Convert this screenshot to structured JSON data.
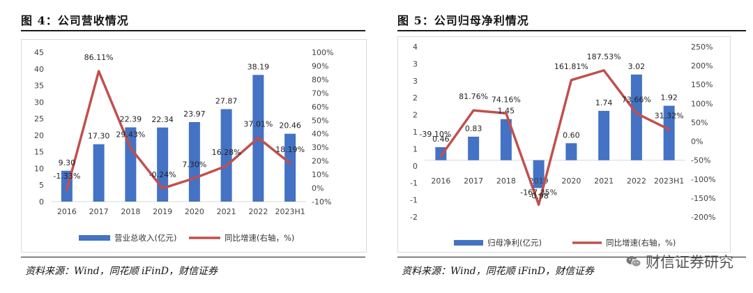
{
  "left": {
    "title": "图 4：公司营收情况",
    "source": "资料来源：Wind，同花顺 iFinD，财信证券"
  },
  "right": {
    "title": "图 5：公司归母净利情况",
    "source": "资料来源：Wind，同花顺 iFinD，财信证券"
  },
  "watermark": {
    "text": "财信证券研究",
    "icon": "wechat-icon"
  },
  "colors": {
    "bar": "#4472c4",
    "line": "#c0504d",
    "grid": "#d9d9d9",
    "axis_text": "#404040"
  },
  "chart_data": [
    {
      "type": "bar",
      "title": "图 4：公司营收情况",
      "categories": [
        "2016",
        "2017",
        "2018",
        "2019",
        "2020",
        "2021",
        "2022",
        "2023H1"
      ],
      "series": [
        {
          "name": "营业总收入(亿元)",
          "type": "bar",
          "axis": "left",
          "values": [
            9.3,
            17.3,
            22.39,
            22.34,
            23.97,
            27.87,
            38.19,
            20.46
          ],
          "labels": [
            "9.30",
            "17.30",
            "22.39",
            "22.34",
            "23.97",
            "27.87",
            "38.19",
            "20.46"
          ]
        },
        {
          "name": "同比增速(右轴，%)",
          "type": "line",
          "axis": "right",
          "values": [
            -1.33,
            86.11,
            29.43,
            -0.24,
            7.3,
            16.28,
            37.01,
            18.19
          ],
          "labels": [
            "-1.33%",
            "86.11%",
            "29.43%",
            "-0.24%",
            "7.30%",
            "16.28%",
            "37.01%",
            "18.19%"
          ]
        }
      ],
      "y_left": {
        "min": 0,
        "max": 45,
        "ticks": [
          "0",
          "5",
          "10",
          "15",
          "20",
          "25",
          "30",
          "35",
          "40",
          "45"
        ]
      },
      "y_right": {
        "min": -10,
        "max": 100,
        "ticks": [
          "-10%",
          "0%",
          "10%",
          "20%",
          "30%",
          "40%",
          "50%",
          "60%",
          "70%",
          "80%",
          "90%",
          "100%"
        ]
      },
      "legend": "bottom"
    },
    {
      "type": "bar",
      "title": "图 5：公司归母净利情况",
      "categories": [
        "2016",
        "2017",
        "2018",
        "2019",
        "2020",
        "2021",
        "2022",
        "2023H1"
      ],
      "series": [
        {
          "name": "归母净利(亿元)",
          "type": "bar",
          "axis": "left",
          "values": [
            0.46,
            0.83,
            1.45,
            -0.98,
            0.6,
            1.74,
            3.02,
            1.92
          ],
          "labels": [
            "0.46",
            "0.83",
            "1.45",
            "-0.98",
            "0.60",
            "1.74",
            "3.02",
            "1.92"
          ]
        },
        {
          "name": "同比增速(右轴，%)",
          "type": "line",
          "axis": "right",
          "values": [
            -39.1,
            81.76,
            74.16,
            -167.35,
            161.81,
            187.53,
            73.66,
            31.32
          ],
          "labels": [
            "-39.10%",
            "81.76%",
            "74.16%",
            "-167.35%",
            "161.81%",
            "187.53%",
            "73.66%",
            "31.32%"
          ]
        }
      ],
      "y_left": {
        "min": -2,
        "max": 4,
        "ticks": [
          "-2",
          "-1",
          "-1",
          "0",
          "1",
          "1",
          "2",
          "2",
          "3",
          "3",
          "4"
        ]
      },
      "y_right": {
        "min": -200,
        "max": 250,
        "ticks": [
          "-200%",
          "-150%",
          "-100%",
          "-50%",
          "0%",
          "50%",
          "100%",
          "150%",
          "200%",
          "250%"
        ]
      },
      "legend": "bottom"
    }
  ]
}
